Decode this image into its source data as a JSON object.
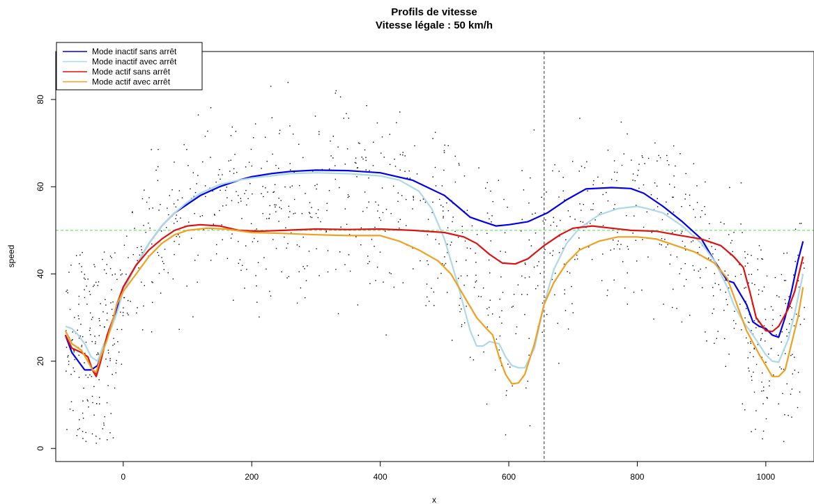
{
  "chart_data": {
    "type": "line",
    "title": "Profils de vitesse",
    "subtitle": "Vitesse légale : 50 km/h",
    "xlabel": "x",
    "ylabel": "speed",
    "xlim": [
      -105,
      1075
    ],
    "ylim": [
      -3,
      91
    ],
    "x_ticks": [
      0,
      200,
      400,
      600,
      800,
      1000
    ],
    "y_ticks": [
      0,
      20,
      40,
      60,
      80
    ],
    "reference_hline": {
      "y": 50,
      "color": "#55dd55"
    },
    "reference_vline": {
      "x": 655,
      "color": "#555555"
    },
    "legend_position": "top-left",
    "series": [
      {
        "name": "Mode inactif sans arrêt",
        "color": "#0000ee",
        "points": [
          [
            -90,
            26
          ],
          [
            -80,
            22
          ],
          [
            -70,
            20
          ],
          [
            -60,
            18
          ],
          [
            -50,
            18
          ],
          [
            -40,
            19
          ],
          [
            -30,
            23
          ],
          [
            -20,
            28
          ],
          [
            -10,
            32
          ],
          [
            0,
            37
          ],
          [
            20,
            42
          ],
          [
            40,
            47
          ],
          [
            60,
            51
          ],
          [
            80,
            54
          ],
          [
            100,
            56
          ],
          [
            120,
            58
          ],
          [
            150,
            60
          ],
          [
            180,
            61.5
          ],
          [
            200,
            62.3
          ],
          [
            230,
            63
          ],
          [
            260,
            63.5
          ],
          [
            300,
            63.8
          ],
          [
            350,
            63.7
          ],
          [
            400,
            63.2
          ],
          [
            450,
            61.5
          ],
          [
            500,
            58
          ],
          [
            520,
            55.5
          ],
          [
            540,
            53
          ],
          [
            560,
            52
          ],
          [
            580,
            51
          ],
          [
            600,
            51.3
          ],
          [
            630,
            52
          ],
          [
            660,
            54
          ],
          [
            690,
            57
          ],
          [
            720,
            59.5
          ],
          [
            760,
            59.8
          ],
          [
            790,
            59.6
          ],
          [
            810,
            58.5
          ],
          [
            840,
            55.5
          ],
          [
            870,
            52
          ],
          [
            900,
            48
          ],
          [
            920,
            43
          ],
          [
            940,
            38.5
          ],
          [
            950,
            38
          ],
          [
            970,
            33
          ],
          [
            980,
            29
          ],
          [
            990,
            28
          ],
          [
            1000,
            27.5
          ],
          [
            1010,
            26
          ],
          [
            1020,
            25.5
          ],
          [
            1030,
            30
          ],
          [
            1040,
            36
          ],
          [
            1050,
            43
          ],
          [
            1058,
            47.5
          ]
        ]
      },
      {
        "name": "Mode inactif avec arrêt",
        "color": "#add8e6",
        "points": [
          [
            -90,
            28
          ],
          [
            -80,
            27.5
          ],
          [
            -70,
            26
          ],
          [
            -60,
            24
          ],
          [
            -50,
            21
          ],
          [
            -40,
            20
          ],
          [
            -30,
            24
          ],
          [
            -20,
            27
          ],
          [
            -10,
            31
          ],
          [
            0,
            36
          ],
          [
            20,
            42
          ],
          [
            40,
            47
          ],
          [
            60,
            51
          ],
          [
            80,
            54
          ],
          [
            100,
            56.5
          ],
          [
            120,
            58.5
          ],
          [
            150,
            60.5
          ],
          [
            180,
            61.5
          ],
          [
            200,
            62
          ],
          [
            230,
            62.5
          ],
          [
            260,
            63
          ],
          [
            300,
            63.2
          ],
          [
            350,
            63
          ],
          [
            400,
            62.5
          ],
          [
            430,
            61.5
          ],
          [
            460,
            59
          ],
          [
            480,
            55
          ],
          [
            500,
            48
          ],
          [
            520,
            38
          ],
          [
            540,
            27
          ],
          [
            550,
            23.5
          ],
          [
            560,
            23.5
          ],
          [
            570,
            24.5
          ],
          [
            585,
            24
          ],
          [
            595,
            21
          ],
          [
            605,
            19
          ],
          [
            615,
            18.5
          ],
          [
            625,
            18.5
          ],
          [
            640,
            23
          ],
          [
            655,
            33
          ],
          [
            670,
            41
          ],
          [
            690,
            47
          ],
          [
            710,
            50.5
          ],
          [
            740,
            53.5
          ],
          [
            770,
            55
          ],
          [
            800,
            55.5
          ],
          [
            815,
            55
          ],
          [
            840,
            54
          ],
          [
            870,
            51
          ],
          [
            900,
            47
          ],
          [
            920,
            43
          ],
          [
            940,
            37
          ],
          [
            950,
            33
          ],
          [
            965,
            29
          ],
          [
            980,
            26
          ],
          [
            1000,
            21.5
          ],
          [
            1010,
            20
          ],
          [
            1020,
            19.8
          ],
          [
            1035,
            25
          ],
          [
            1045,
            31
          ],
          [
            1058,
            40
          ]
        ]
      },
      {
        "name": "Mode actif sans arrêt",
        "color": "#dd1111",
        "points": [
          [
            -90,
            26
          ],
          [
            -80,
            23
          ],
          [
            -65,
            22
          ],
          [
            -55,
            21
          ],
          [
            -48,
            18
          ],
          [
            -42,
            16.5
          ],
          [
            -35,
            20
          ],
          [
            -25,
            26
          ],
          [
            -15,
            30
          ],
          [
            -10,
            33
          ],
          [
            0,
            37
          ],
          [
            20,
            42
          ],
          [
            40,
            45.5
          ],
          [
            60,
            48
          ],
          [
            80,
            50
          ],
          [
            100,
            51
          ],
          [
            120,
            51.3
          ],
          [
            150,
            51
          ],
          [
            180,
            50
          ],
          [
            210,
            49.8
          ],
          [
            250,
            50
          ],
          [
            300,
            50.3
          ],
          [
            350,
            50.2
          ],
          [
            400,
            50.3
          ],
          [
            450,
            50
          ],
          [
            500,
            49.5
          ],
          [
            530,
            48.5
          ],
          [
            550,
            47
          ],
          [
            570,
            44.5
          ],
          [
            590,
            42.5
          ],
          [
            610,
            42.3
          ],
          [
            630,
            43.5
          ],
          [
            655,
            46.5
          ],
          [
            680,
            49
          ],
          [
            700,
            50.5
          ],
          [
            730,
            51
          ],
          [
            760,
            50.5
          ],
          [
            790,
            50
          ],
          [
            830,
            49.8
          ],
          [
            860,
            49
          ],
          [
            900,
            48
          ],
          [
            930,
            46.5
          ],
          [
            950,
            44
          ],
          [
            965,
            41.5
          ],
          [
            975,
            36
          ],
          [
            985,
            30
          ],
          [
            1000,
            27
          ],
          [
            1010,
            26.8
          ],
          [
            1020,
            28
          ],
          [
            1035,
            32
          ],
          [
            1045,
            36
          ],
          [
            1058,
            44
          ]
        ]
      },
      {
        "name": "Mode actif avec arrêt",
        "color": "#f0a020",
        "points": [
          [
            -90,
            27
          ],
          [
            -80,
            24
          ],
          [
            -65,
            22.5
          ],
          [
            -55,
            20
          ],
          [
            -48,
            18
          ],
          [
            -42,
            17.5
          ],
          [
            -35,
            21
          ],
          [
            -25,
            25
          ],
          [
            -15,
            30
          ],
          [
            -10,
            33
          ],
          [
            0,
            36
          ],
          [
            20,
            40
          ],
          [
            40,
            44
          ],
          [
            60,
            47
          ],
          [
            80,
            49
          ],
          [
            100,
            50
          ],
          [
            130,
            50.5
          ],
          [
            160,
            50.3
          ],
          [
            200,
            49.5
          ],
          [
            250,
            49.3
          ],
          [
            300,
            49
          ],
          [
            350,
            48.8
          ],
          [
            400,
            48.8
          ],
          [
            430,
            47.5
          ],
          [
            460,
            45.5
          ],
          [
            490,
            43
          ],
          [
            510,
            40
          ],
          [
            530,
            35
          ],
          [
            550,
            30
          ],
          [
            565,
            27.5
          ],
          [
            575,
            26
          ],
          [
            585,
            21
          ],
          [
            595,
            17
          ],
          [
            605,
            14.8
          ],
          [
            615,
            15
          ],
          [
            625,
            17
          ],
          [
            640,
            24
          ],
          [
            655,
            33
          ],
          [
            670,
            38
          ],
          [
            690,
            42.5
          ],
          [
            710,
            45.5
          ],
          [
            740,
            47.5
          ],
          [
            770,
            48.5
          ],
          [
            800,
            48.5
          ],
          [
            830,
            48
          ],
          [
            860,
            46.5
          ],
          [
            890,
            45
          ],
          [
            920,
            42.5
          ],
          [
            940,
            39
          ],
          [
            955,
            33
          ],
          [
            970,
            27
          ],
          [
            990,
            21.5
          ],
          [
            1000,
            19
          ],
          [
            1010,
            16.5
          ],
          [
            1020,
            16.5
          ],
          [
            1030,
            18
          ],
          [
            1040,
            24
          ],
          [
            1050,
            30
          ],
          [
            1058,
            37
          ]
        ]
      }
    ]
  }
}
